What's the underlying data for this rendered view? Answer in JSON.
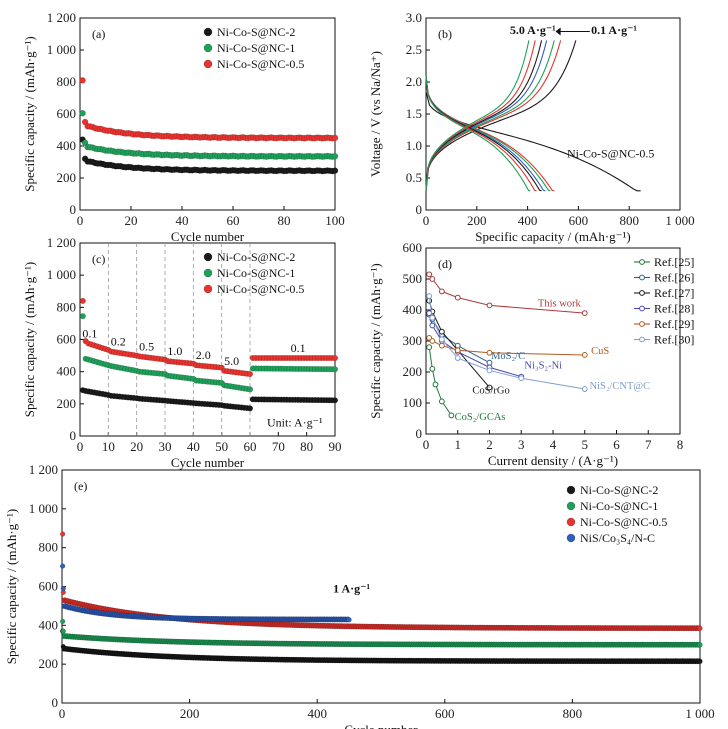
{
  "colors": {
    "black": "#1a1a1a",
    "green": "#1fa05a",
    "red": "#e8332e",
    "blue": "#2f5fc0"
  },
  "chart_data": [
    {
      "panel": "(a)",
      "type": "scatter",
      "xlabel": "Cycle number",
      "ylabel": "Specific capacity / (mAh·g⁻¹)",
      "xlim": [
        0,
        100
      ],
      "ylim": [
        0,
        1200
      ],
      "xticks": [
        "0",
        "20",
        "40",
        "60",
        "80",
        "100"
      ],
      "yticks": [
        "0",
        "200",
        "400",
        "600",
        "800",
        "1 000",
        "1 200"
      ],
      "legend_position": "top-right",
      "series": [
        {
          "name": "Ni-Co-S@NC-2",
          "color": "#1a1a1a",
          "first": [
            [
              1,
              440
            ],
            [
              2,
              320
            ]
          ],
          "start": 305,
          "end": 245,
          "x_end": 100
        },
        {
          "name": "Ni-Co-S@NC-1",
          "color": "#1fa05a",
          "first": [
            [
              1,
              605
            ],
            [
              2,
              420
            ]
          ],
          "start": 395,
          "end": 335,
          "x_end": 100
        },
        {
          "name": "Ni-Co-S@NC-0.5",
          "color": "#e8332e",
          "first": [
            [
              1,
              810
            ],
            [
              2,
              550
            ]
          ],
          "start": 525,
          "end": 450,
          "x_end": 100
        }
      ]
    },
    {
      "panel": "(b)",
      "type": "line",
      "xlabel": "Specific capacity / (mAh·g⁻¹)",
      "ylabel": "Voltage / V (vs Na/Na⁺)",
      "xlim": [
        0,
        1000
      ],
      "ylim": [
        0,
        3.0
      ],
      "xticks": [
        "0",
        "200",
        "400",
        "600",
        "800",
        "1 000"
      ],
      "yticks": [
        "0",
        "0.5",
        "1.0",
        "1.5",
        "2.0",
        "2.5",
        "3.0"
      ],
      "annotations": {
        "rate_high": "5.0 A·g⁻¹",
        "rate_low": "0.1 A·g⁻¹",
        "sample": "Ni-Co-S@NC-0.5"
      },
      "curves": [
        {
          "color": "#1a1a1a",
          "discharge_end": 845,
          "charge_end": 590
        },
        {
          "color": "#e8332e",
          "discharge_end": 505,
          "charge_end": 530
        },
        {
          "color": "#1fa05a",
          "discharge_end": 490,
          "charge_end": 505
        },
        {
          "color": "#2f5fc0",
          "discharge_end": 470,
          "charge_end": 475
        },
        {
          "color": "#1a1a1a",
          "discharge_end": 455,
          "charge_end": 455
        },
        {
          "color": "#e8332e",
          "discharge_end": 435,
          "charge_end": 430
        },
        {
          "color": "#1fa05a",
          "discharge_end": 410,
          "charge_end": 405
        }
      ]
    },
    {
      "panel": "(c)",
      "type": "scatter",
      "xlabel": "Cycle number",
      "ylabel": "Specific capacity / (mAh·g⁻¹)",
      "xlim": [
        0,
        90
      ],
      "ylim": [
        0,
        1200
      ],
      "xticks": [
        "0",
        "10",
        "20",
        "30",
        "40",
        "50",
        "60",
        "70",
        "80",
        "90"
      ],
      "yticks": [
        "0",
        "200",
        "400",
        "600",
        "800",
        "1 000",
        "1 200"
      ],
      "legend_position": "top-right",
      "unit_label": "Unit: A·g⁻¹",
      "rate_labels": [
        {
          "text": "0.1",
          "x": 3.5
        },
        {
          "text": "0.2",
          "x": 13.5
        },
        {
          "text": "0.5",
          "x": 23.5
        },
        {
          "text": "1.0",
          "x": 33.5
        },
        {
          "text": "2.0",
          "x": 43.5
        },
        {
          "text": "5.0",
          "x": 53.5
        },
        {
          "text": "0.1",
          "x": 77
        }
      ],
      "dividers": [
        10,
        20,
        30,
        40,
        50,
        60
      ],
      "series": [
        {
          "name": "Ni-Co-S@NC-2",
          "color": "#1a1a1a",
          "first": [
            [
              1,
              285
            ]
          ],
          "seg": [
            [
              280,
              255
            ],
            [
              250,
              235
            ],
            [
              232,
              220
            ],
            [
              218,
              205
            ],
            [
              203,
              192
            ],
            [
              188,
              172
            ],
            [
              228,
              222
            ]
          ]
        },
        {
          "name": "Ni-Co-S@NC-1",
          "color": "#1fa05a",
          "first": [
            [
              1,
              745
            ],
            [
              2,
              480
            ]
          ],
          "seg": [
            [
              475,
              440
            ],
            [
              435,
              405
            ],
            [
              400,
              385
            ],
            [
              375,
              355
            ],
            [
              345,
              330
            ],
            [
              315,
              290
            ],
            [
              420,
              415
            ]
          ]
        },
        {
          "name": "Ni-Co-S@NC-0.5",
          "color": "#e8332e",
          "first": [
            [
              1,
              840
            ],
            [
              2,
              590
            ]
          ],
          "seg": [
            [
              575,
              535
            ],
            [
              525,
              500
            ],
            [
              495,
              475
            ],
            [
              465,
              450
            ],
            [
              440,
              425
            ],
            [
              405,
              385
            ],
            [
              485,
              485
            ]
          ]
        }
      ]
    },
    {
      "panel": "(d)",
      "type": "line",
      "xlabel": "Current density / (A·g⁻¹)",
      "ylabel": "Specific capacity / (mAh·g⁻¹)",
      "xlim": [
        0,
        8
      ],
      "ylim": [
        0,
        600
      ],
      "xticks": [
        "0",
        "1",
        "2",
        "3",
        "4",
        "5",
        "6",
        "7",
        "8"
      ],
      "yticks": [
        "0",
        "100",
        "200",
        "300",
        "400",
        "500",
        "600"
      ],
      "legend_position": "top-right",
      "series": [
        {
          "name": "Ref.[25]",
          "color": "#1e7a3c",
          "points": [
            [
              0.1,
              280
            ],
            [
              0.2,
              210
            ],
            [
              0.3,
              160
            ],
            [
              0.5,
              105
            ],
            [
              0.8,
              60
            ]
          ],
          "label": "CoS₂/GCAs"
        },
        {
          "name": "Ref.[26]",
          "color": "#2f5f8e",
          "points": [
            [
              0.1,
              385
            ],
            [
              0.2,
              370
            ],
            [
              0.5,
              320
            ],
            [
              1.0,
              285
            ],
            [
              2.0,
              230
            ]
          ],
          "label": "MoS₂/C"
        },
        {
          "name": "Ref.[27]",
          "color": "#1a1a1a",
          "points": [
            [
              0.1,
              430
            ],
            [
              0.2,
              395
            ],
            [
              0.5,
              330
            ],
            [
              1.0,
              270
            ],
            [
              2.0,
              150
            ]
          ],
          "label": "CoS/rGo"
        },
        {
          "name": "Ref.[28]",
          "color": "#4a4ab0",
          "points": [
            [
              0.1,
              390
            ],
            [
              0.2,
              350
            ],
            [
              0.5,
              300
            ],
            [
              1.0,
              265
            ],
            [
              2.0,
              215
            ],
            [
              3.0,
              185
            ]
          ],
          "label": "Ni₃S₂-Ni"
        },
        {
          "name": "Ref.[29]",
          "color": "#b35a1f",
          "points": [
            [
              0.1,
              310
            ],
            [
              0.2,
              300
            ],
            [
              0.5,
              285
            ],
            [
              1.0,
              270
            ],
            [
              2.0,
              262
            ],
            [
              5.0,
              255
            ]
          ],
          "label": "CuS"
        },
        {
          "name": "Ref.[30]",
          "color": "#7f9fd0",
          "points": [
            [
              0.1,
              445
            ],
            [
              0.2,
              375
            ],
            [
              0.5,
              305
            ],
            [
              1.0,
              245
            ],
            [
              2.0,
              205
            ],
            [
              3.0,
              180
            ],
            [
              5.0,
              145
            ]
          ],
          "label": "NiS₂/CNT@C"
        },
        {
          "name": "This work",
          "color": "#a83a3a",
          "points": [
            [
              0.1,
              515
            ],
            [
              0.2,
              500
            ],
            [
              0.5,
              460
            ],
            [
              1.0,
              440
            ],
            [
              2.0,
              415
            ],
            [
              5.0,
              390
            ]
          ],
          "label": "This work"
        }
      ]
    },
    {
      "panel": "(e)",
      "type": "scatter",
      "xlabel": "Cycle number",
      "ylabel": "Specific capacity / (mAh·g⁻¹)",
      "xlim": [
        0,
        1000
      ],
      "ylim": [
        0,
        1200
      ],
      "xticks": [
        "0",
        "200",
        "400",
        "600",
        "800",
        "1 000"
      ],
      "yticks": [
        "0",
        "200",
        "400",
        "600",
        "800",
        "1 000",
        "1 200"
      ],
      "legend_position": "top-right",
      "rate_label": "1 A·g⁻¹",
      "series": [
        {
          "name": "Ni-Co-S@NC-2",
          "color": "#1a1a1a",
          "first": [
            [
              1,
              370
            ],
            [
              2,
              290
            ]
          ],
          "start": 280,
          "end": 215,
          "x_end": 1000
        },
        {
          "name": "Ni-Co-S@NC-1",
          "color": "#1fa05a",
          "first": [
            [
              1,
              420
            ],
            [
              2,
              370
            ]
          ],
          "start": 345,
          "end": 300,
          "x_end": 1000
        },
        {
          "name": "Ni-Co-S@NC-0.5",
          "color": "#e8332e",
          "first": [
            [
              1,
              870
            ],
            [
              2,
              570
            ]
          ],
          "start": 530,
          "end": 385,
          "x_end": 1000
        },
        {
          "name": "NiS/Co₃S₄/N-C",
          "color": "#2f5fc0",
          "first": [
            [
              1,
              705
            ],
            [
              2,
              590
            ]
          ],
          "start": 500,
          "end": 430,
          "x_end": 450
        }
      ]
    }
  ]
}
